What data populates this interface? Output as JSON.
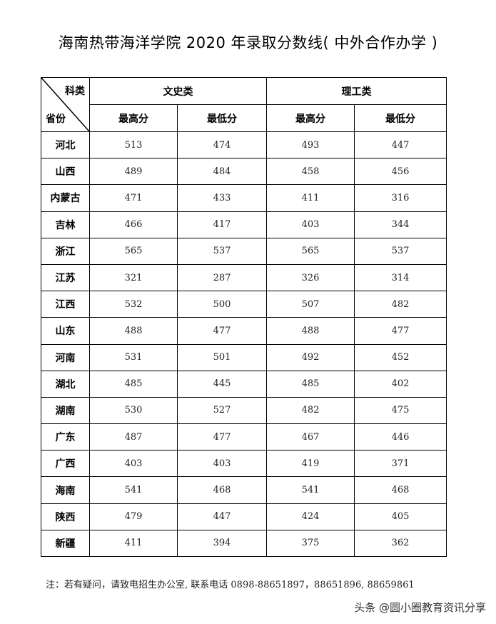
{
  "title": "海南热带海洋学院 2020 年录取分数线( 中外合作办学 )",
  "table": {
    "corner_top": "科类",
    "corner_bottom": "省份",
    "groups": [
      "文史类",
      "理工类"
    ],
    "subheaders": [
      "最高分",
      "最低分",
      "最高分",
      "最低分"
    ],
    "rows": [
      {
        "province": "河北",
        "values": [
          "513",
          "474",
          "493",
          "447"
        ]
      },
      {
        "province": "山西",
        "values": [
          "489",
          "484",
          "458",
          "456"
        ]
      },
      {
        "province": "内蒙古",
        "values": [
          "471",
          "433",
          "411",
          "316"
        ]
      },
      {
        "province": "吉林",
        "values": [
          "466",
          "417",
          "403",
          "344"
        ]
      },
      {
        "province": "浙江",
        "values": [
          "565",
          "537",
          "565",
          "537"
        ]
      },
      {
        "province": "江苏",
        "values": [
          "321",
          "287",
          "326",
          "314"
        ]
      },
      {
        "province": "江西",
        "values": [
          "532",
          "500",
          "507",
          "482"
        ]
      },
      {
        "province": "山东",
        "values": [
          "488",
          "477",
          "488",
          "477"
        ]
      },
      {
        "province": "河南",
        "values": [
          "531",
          "501",
          "492",
          "452"
        ]
      },
      {
        "province": "湖北",
        "values": [
          "485",
          "445",
          "485",
          "402"
        ]
      },
      {
        "province": "湖南",
        "values": [
          "530",
          "527",
          "482",
          "475"
        ]
      },
      {
        "province": "广东",
        "values": [
          "487",
          "477",
          "467",
          "446"
        ]
      },
      {
        "province": "广西",
        "values": [
          "403",
          "403",
          "419",
          "371"
        ]
      },
      {
        "province": "海南",
        "values": [
          "541",
          "468",
          "541",
          "468"
        ]
      },
      {
        "province": "陕西",
        "values": [
          "479",
          "447",
          "424",
          "405"
        ]
      },
      {
        "province": "新疆",
        "values": [
          "411",
          "394",
          "375",
          "362"
        ]
      }
    ]
  },
  "note": "注：若有疑问，请致电招生办公室, 联系电话 0898-88651897，88651896, 88659861",
  "watermark": "头条 @圆小圈教育资讯分享"
}
